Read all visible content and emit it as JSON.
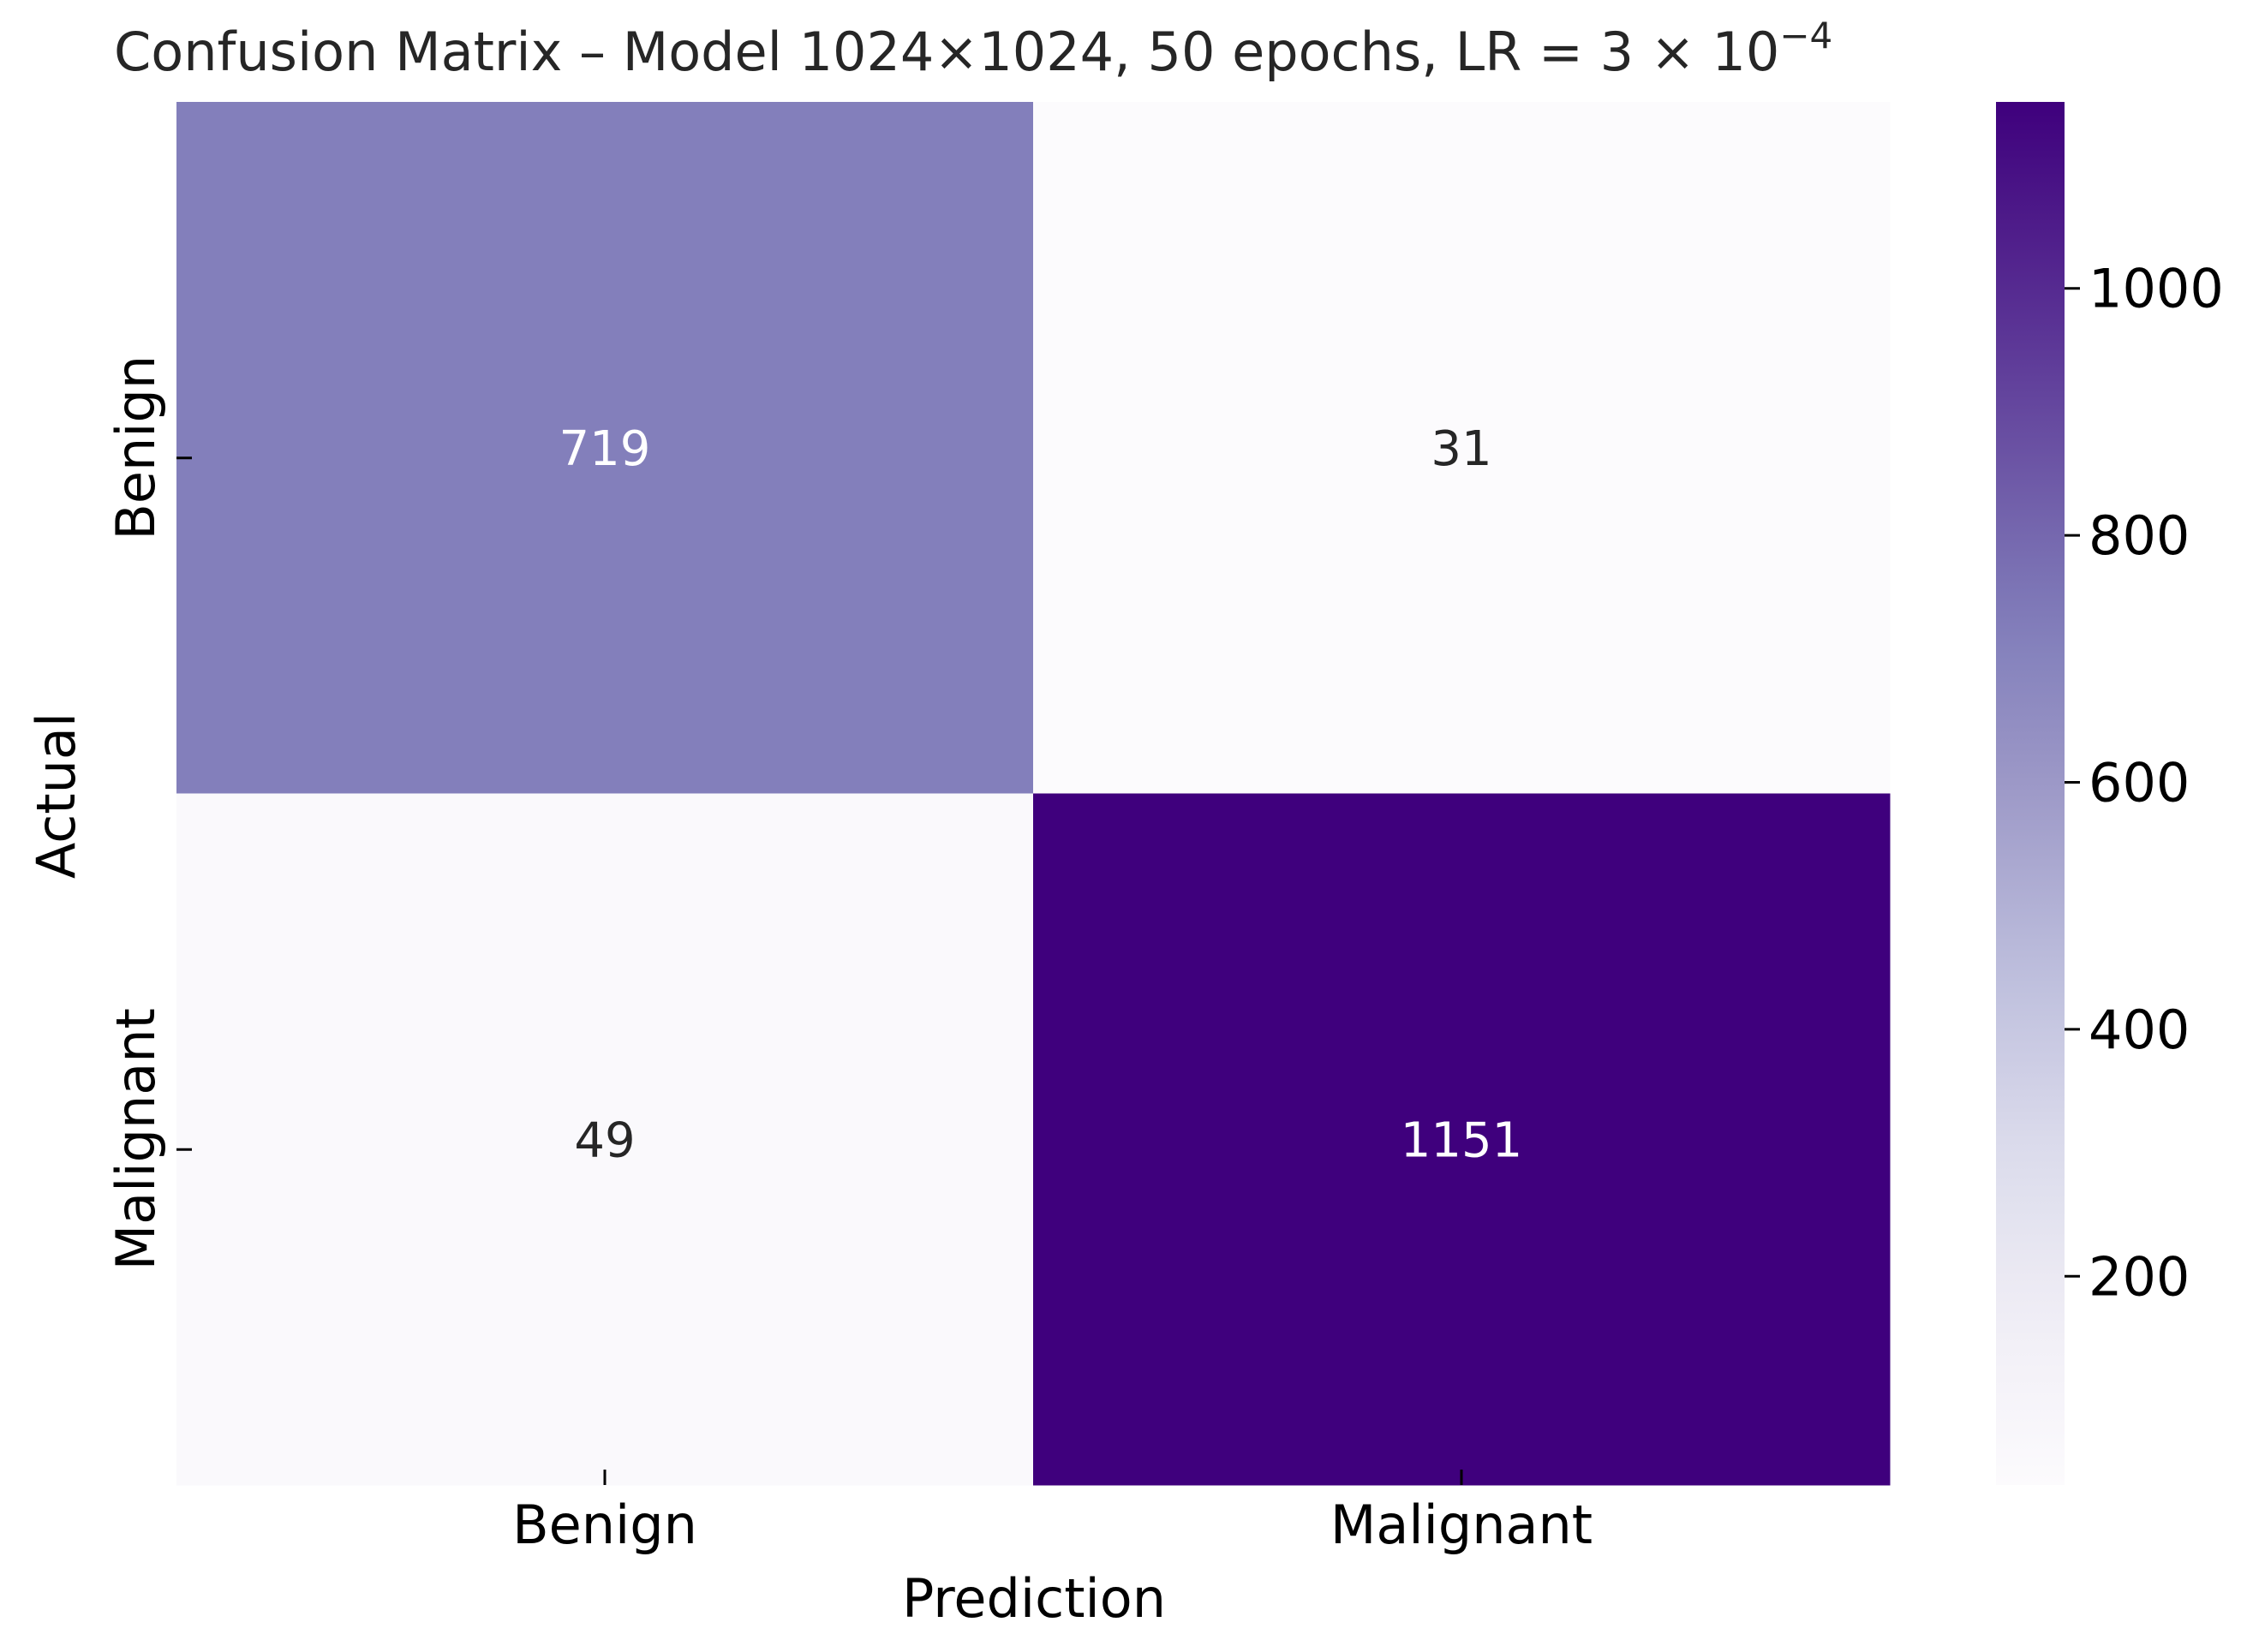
{
  "chart_data": {
    "type": "heatmap",
    "title": "Confusion Matrix – Model 1024×1024, 50 epochs, LR = 3 × 10",
    "title_superscript": "−4",
    "xlabel": "Prediction",
    "ylabel": "Actual",
    "x_categories": [
      "Benign",
      "Malignant"
    ],
    "y_categories": [
      "Benign",
      "Malignant"
    ],
    "matrix": [
      [
        719,
        31
      ],
      [
        49,
        1151
      ]
    ],
    "colorbar": {
      "min": 31,
      "max": 1151,
      "ticks": [
        200,
        400,
        600,
        800,
        1000
      ],
      "tick_labels": [
        "200",
        "400",
        "600",
        "800",
        "1000"
      ]
    },
    "colormap": [
      "#fcfbfd",
      "#efedf5",
      "#dadaeb",
      "#bcbddc",
      "#9e9ac8",
      "#807dba",
      "#6a51a3",
      "#54278f",
      "#3f007d"
    ],
    "annotation_colors": {
      "light": "#ffffff",
      "dark": "#262626"
    }
  }
}
